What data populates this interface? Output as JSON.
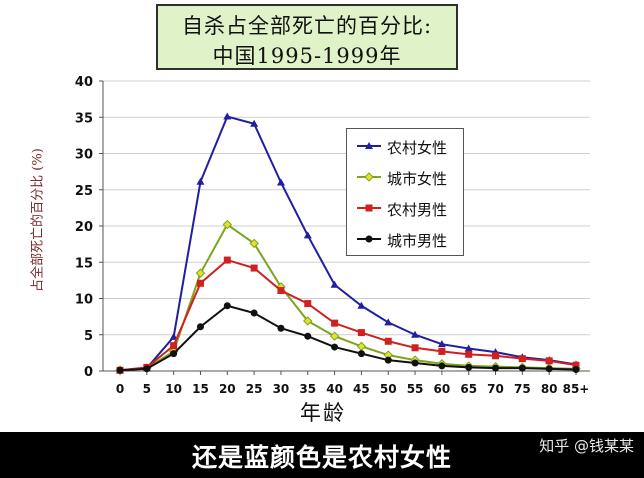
{
  "chart_data": {
    "type": "line",
    "title_line1": "自杀占全部死亡的百分比:",
    "title_line2": "中国1995-1999年",
    "xlabel": "年龄",
    "ylabel": "占全部死亡的百分比 (%)",
    "categories": [
      "0",
      "5",
      "10",
      "15",
      "20",
      "25",
      "30",
      "35",
      "40",
      "45",
      "50",
      "55",
      "60",
      "65",
      "70",
      "75",
      "80",
      "85+"
    ],
    "ylim": [
      0,
      40
    ],
    "yticks": [
      0,
      5,
      10,
      15,
      20,
      25,
      30,
      35,
      40
    ],
    "grid": true,
    "legend_position": "upper-right",
    "series": [
      {
        "name": "农村女性",
        "color": "#1f1fa0",
        "marker": "triangle",
        "values": [
          0.1,
          0.4,
          4.7,
          26.1,
          35.1,
          34.1,
          26.0,
          18.7,
          11.9,
          9.0,
          6.7,
          5.0,
          3.7,
          3.1,
          2.6,
          1.9,
          1.5,
          0.9
        ]
      },
      {
        "name": "城市女性",
        "color": "#7aa51c",
        "marker": "diamond",
        "values": [
          0.1,
          0.4,
          2.7,
          13.5,
          20.2,
          17.6,
          11.6,
          6.9,
          4.8,
          3.4,
          2.2,
          1.5,
          1.0,
          0.7,
          0.6,
          0.5,
          0.4,
          0.3
        ]
      },
      {
        "name": "农村男性",
        "color": "#d02020",
        "marker": "square",
        "values": [
          0.1,
          0.5,
          3.5,
          12.1,
          15.3,
          14.2,
          11.1,
          9.3,
          6.6,
          5.3,
          4.1,
          3.2,
          2.7,
          2.3,
          2.1,
          1.7,
          1.4,
          0.8
        ]
      },
      {
        "name": "城市男性",
        "color": "#111111",
        "marker": "circle",
        "values": [
          0.1,
          0.3,
          2.4,
          6.1,
          9.0,
          8.0,
          5.9,
          4.8,
          3.3,
          2.4,
          1.5,
          1.1,
          0.7,
          0.5,
          0.4,
          0.4,
          0.3,
          0.2
        ]
      }
    ]
  },
  "caption": "还是蓝颜色是农村女性",
  "watermark": "知乎 @钱某某"
}
